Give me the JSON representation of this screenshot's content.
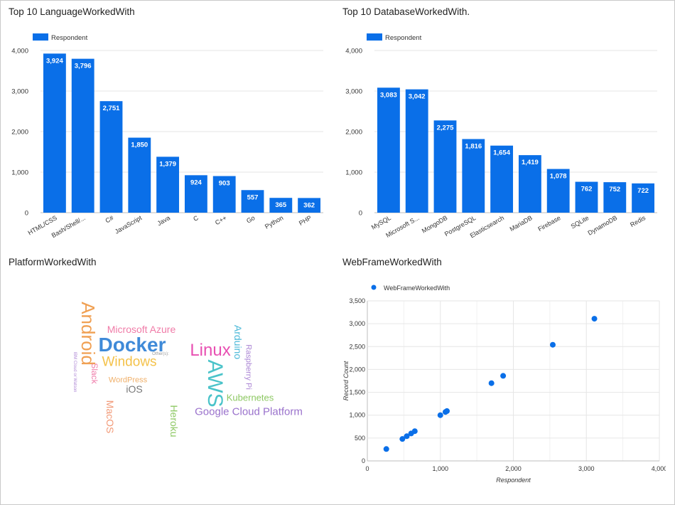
{
  "panels": {
    "lang_title": "Top 10 LanguageWorkedWith",
    "db_title": "Top 10 DatabaseWorkedWith.",
    "platform_title": "PlatformWorkedWith",
    "webframe_title": "WebFrameWorkedWith"
  },
  "colors": {
    "bar": "#0a6fe8",
    "bar_label": "#ffffff",
    "grid": "#e6e6e6",
    "scatter_point": "#0a6fe8"
  },
  "chart_data": [
    {
      "id": "lang",
      "type": "bar",
      "legend": "Respondent",
      "legend_position": "top-left",
      "categories": [
        "HTML/CSS",
        "Bash/Shell/...",
        "C#",
        "JavaScript",
        "Java",
        "C",
        "C++",
        "Go",
        "Python",
        "PHP"
      ],
      "values": [
        3924,
        3796,
        2751,
        1850,
        1379,
        924,
        903,
        557,
        365,
        362
      ],
      "value_labels": [
        "3,924",
        "3,796",
        "2,751",
        "1,850",
        "1,379",
        "924",
        "903",
        "557",
        "365",
        "362"
      ],
      "ylim": [
        0,
        4000
      ],
      "yticks": [
        0,
        1000,
        2000,
        3000,
        4000
      ],
      "ytick_labels": [
        "0",
        "1,000",
        "2,000",
        "3,000",
        "4,000"
      ],
      "grid": true
    },
    {
      "id": "db",
      "type": "bar",
      "legend": "Respondent",
      "legend_position": "top-left",
      "categories": [
        "MySQL",
        "Microsoft S...",
        "MongoDB",
        "PostgreSQL",
        "Elasticsearch",
        "MariaDB",
        "Firebase",
        "SQLite",
        "DynamoDB",
        "Redis"
      ],
      "values": [
        3083,
        3042,
        2275,
        1816,
        1654,
        1419,
        1078,
        762,
        752,
        722
      ],
      "value_labels": [
        "3,083",
        "3,042",
        "2,275",
        "1,816",
        "1,654",
        "1,419",
        "1,078",
        "762",
        "752",
        "722"
      ],
      "ylim": [
        0,
        4000
      ],
      "yticks": [
        0,
        1000,
        2000,
        3000,
        4000
      ],
      "ytick_labels": [
        "0",
        "1,000",
        "2,000",
        "3,000",
        "4,000"
      ],
      "grid": true
    },
    {
      "id": "webframe",
      "type": "scatter",
      "legend": "WebFrameWorkedWith",
      "legend_position": "top-left",
      "xlabel": "Respondent",
      "ylabel": "Record Count",
      "xlim": [
        0,
        4000
      ],
      "ylim": [
        0,
        3500
      ],
      "xticks": [
        0,
        1000,
        2000,
        3000,
        4000
      ],
      "xtick_labels": [
        "0",
        "1,000",
        "2,000",
        "3,000",
        "4,000"
      ],
      "yticks": [
        0,
        500,
        1000,
        1500,
        2000,
        2500,
        3000,
        3500
      ],
      "ytick_labels": [
        "0",
        "500",
        "1,000",
        "1,500",
        "2,000",
        "2,500",
        "3,000",
        "3,500"
      ],
      "x": [
        260,
        480,
        540,
        600,
        650,
        1000,
        1070,
        1090,
        1700,
        1860,
        2540,
        3110
      ],
      "y": [
        260,
        480,
        540,
        600,
        650,
        1000,
        1070,
        1090,
        1700,
        1860,
        2540,
        3110
      ],
      "grid": true
    }
  ],
  "wordcloud": {
    "words": [
      {
        "text": "Android",
        "color": "#f0a053",
        "size": 26,
        "rotate": 90
      },
      {
        "text": "Microsoft Azure",
        "color": "#f07ca8",
        "size": 14,
        "rotate": 0
      },
      {
        "text": "Docker",
        "color": "#3f8ad8",
        "size": 28,
        "rotate": 0,
        "bold": true
      },
      {
        "text": "Other(s):",
        "color": "#9a9a9a",
        "size": 6,
        "rotate": 0
      },
      {
        "text": "Windows",
        "color": "#f4c24a",
        "size": 19,
        "rotate": 0
      },
      {
        "text": "IBM Cloud or Watson",
        "color": "#b08ad6",
        "size": 6,
        "rotate": 90
      },
      {
        "text": "Slack",
        "color": "#ef7ba9",
        "size": 12,
        "rotate": 90
      },
      {
        "text": "WordPress",
        "color": "#f0b06a",
        "size": 11,
        "rotate": 0
      },
      {
        "text": "iOS",
        "color": "#777777",
        "size": 14,
        "rotate": 0
      },
      {
        "text": "MacOS",
        "color": "#f29a78",
        "size": 14,
        "rotate": 90
      },
      {
        "text": "Heroku",
        "color": "#8dc863",
        "size": 14,
        "rotate": 90
      },
      {
        "text": "Linux",
        "color": "#e850b2",
        "size": 24,
        "rotate": 0
      },
      {
        "text": "AWS",
        "color": "#4ac3c9",
        "size": 30,
        "rotate": 90
      },
      {
        "text": "Arduino",
        "color": "#4ab8d8",
        "size": 14,
        "rotate": 90
      },
      {
        "text": "Raspberry Pi",
        "color": "#aa84d4",
        "size": 11,
        "rotate": 90
      },
      {
        "text": "Kubernetes",
        "color": "#8dc863",
        "size": 13,
        "rotate": 0
      },
      {
        "text": "Google Cloud Platform",
        "color": "#9a72cc",
        "size": 15,
        "rotate": 0
      }
    ]
  }
}
